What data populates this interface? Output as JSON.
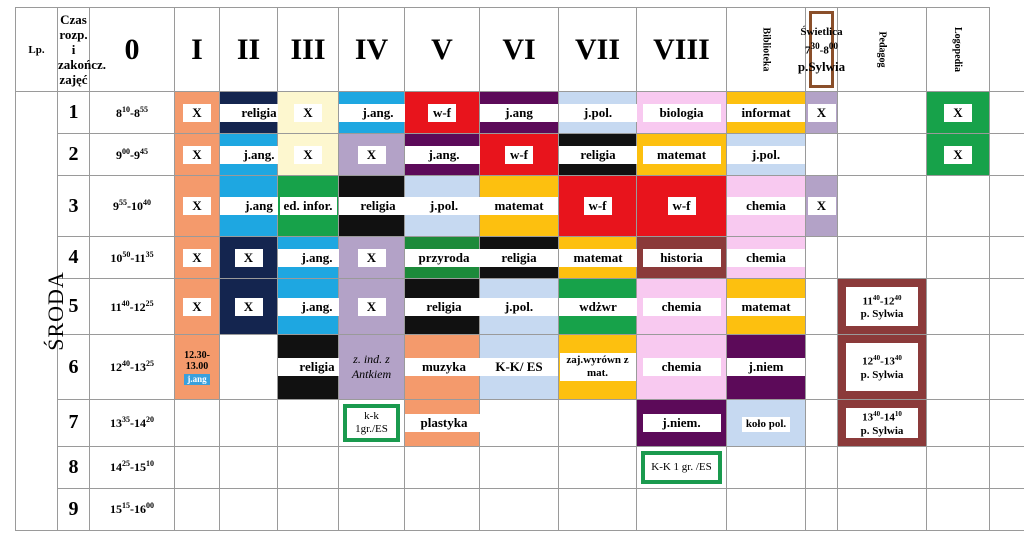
{
  "day": "ŚRODA",
  "headers": {
    "lp": "Lp.",
    "czas": [
      "Czas",
      "rozp. i",
      "zakończ.",
      "zajęć"
    ],
    "classes": [
      "0",
      "I",
      "II",
      "III",
      "IV",
      "V",
      "VI",
      "VII",
      "VIII"
    ],
    "biblioteka": "Biblioteka",
    "swietlica": {
      "title": "Świetlica",
      "time_start": "7",
      "time_start_min": "30",
      "time_end": "8",
      "time_end_min": "00",
      "name": "p.Sylwia"
    },
    "pedagog": "Pedagog",
    "logopedia": "Logopedia"
  },
  "colors": {
    "orange": "#f49a6c",
    "navy": "#14254f",
    "cream": "#fdf7cf",
    "cyan": "#1ea7e1",
    "red": "#e8141c",
    "purple": "#5c0a59",
    "lightblue": "#c6d9f1",
    "pink": "#f8c9f0",
    "yellow": "#fdc00f",
    "lavender": "#b3a2c7",
    "black": "#111111",
    "green": "#17a24a",
    "darkgreen": "#1c8a3a",
    "brown": "#8b3a3a",
    "darkred": "#8b3a3a"
  },
  "rows": [
    {
      "num": "1",
      "t1": "8",
      "t1m": "10",
      "t2": "8",
      "t2m": "55",
      "cells": [
        {
          "text": "X",
          "bg": "#f49a6c"
        },
        {
          "text": "religia",
          "bg": "#14254f"
        },
        {
          "text": "X",
          "bg": "#fdf7cf"
        },
        {
          "text": "j.ang.",
          "bg": "#1ea7e1"
        },
        {
          "text": "w-f",
          "bg": "#e8141c"
        },
        {
          "text": "j.ang",
          "bg": "#5c0a59"
        },
        {
          "text": "j.pol.",
          "bg": "#c6d9f1"
        },
        {
          "text": "biologia",
          "bg": "#f8c9f0"
        },
        {
          "text": "informat",
          "bg": "#fdc00f"
        },
        {
          "text": "X",
          "bg": "#b3a2c7"
        },
        {
          "text": "",
          "bg": "#ffffff"
        },
        {
          "text": "X",
          "bg": "#17a24a"
        },
        {
          "text": "",
          "bg": "#ffffff"
        }
      ]
    },
    {
      "num": "2",
      "t1": "9",
      "t1m": "00",
      "t2": "9",
      "t2m": "45",
      "cells": [
        {
          "text": "X",
          "bg": "#f49a6c"
        },
        {
          "text": "j.ang.",
          "bg": "#1ea7e1"
        },
        {
          "text": "X",
          "bg": "#fdf7cf"
        },
        {
          "text": "X",
          "bg": "#b3a2c7"
        },
        {
          "text": "j.ang.",
          "bg": "#5c0a59"
        },
        {
          "text": "w-f",
          "bg": "#e8141c"
        },
        {
          "text": "religia",
          "bg": "#111111"
        },
        {
          "text": "matemat",
          "bg": "#fdc00f"
        },
        {
          "text": "j.pol.",
          "bg": "#c6d9f1"
        },
        {
          "text": "",
          "bg": "#ffffff"
        },
        {
          "text": "",
          "bg": "#ffffff"
        },
        {
          "text": "X",
          "bg": "#17a24a"
        },
        {
          "text": "",
          "bg": "#ffffff"
        }
      ]
    },
    {
      "num": "3",
      "t1": "9",
      "t1m": "55",
      "t2": "10",
      "t2m": "40",
      "cells": [
        {
          "text": "X",
          "bg": "#f49a6c"
        },
        {
          "text": "j.ang",
          "bg": "#1ea7e1"
        },
        {
          "text": "ed. infor.",
          "bg": "#17a24a"
        },
        {
          "text": "religia",
          "bg": "#111111"
        },
        {
          "text": "j.pol.",
          "bg": "#c6d9f1"
        },
        {
          "text": "matemat",
          "bg": "#fdc00f"
        },
        {
          "text": "w-f",
          "bg": "#e8141c"
        },
        {
          "text": "w-f",
          "bg": "#e8141c"
        },
        {
          "text": "chemia",
          "bg": "#f8c9f0"
        },
        {
          "text": "X",
          "bg": "#b3a2c7"
        },
        {
          "text": "",
          "bg": "#ffffff"
        },
        {
          "text": "",
          "bg": "#ffffff"
        },
        {
          "text": "",
          "bg": "#ffffff"
        }
      ]
    },
    {
      "num": "4",
      "t1": "10",
      "t1m": "50",
      "t2": "11",
      "t2m": "35",
      "cells": [
        {
          "text": "X",
          "bg": "#f49a6c"
        },
        {
          "text": "X",
          "bg": "#14254f"
        },
        {
          "text": "j.ang.",
          "bg": "#1ea7e1"
        },
        {
          "text": "X",
          "bg": "#b3a2c7"
        },
        {
          "text": "przyroda",
          "bg": "#1c8a3a"
        },
        {
          "text": "religia",
          "bg": "#111111"
        },
        {
          "text": "matemat",
          "bg": "#fdc00f"
        },
        {
          "text": "historia",
          "bg": "#8b3a3a"
        },
        {
          "text": "chemia",
          "bg": "#f8c9f0"
        },
        {
          "text": "",
          "bg": "#ffffff"
        },
        {
          "text": "",
          "bg": "#ffffff"
        },
        {
          "text": "",
          "bg": "#ffffff"
        },
        {
          "text": "",
          "bg": "#ffffff"
        }
      ]
    },
    {
      "num": "5",
      "t1": "11",
      "t1m": "40",
      "t2": "12",
      "t2m": "25",
      "cells": [
        {
          "text": "X",
          "bg": "#f49a6c"
        },
        {
          "text": "X",
          "bg": "#14254f"
        },
        {
          "text": "j.ang.",
          "bg": "#1ea7e1"
        },
        {
          "text": "X",
          "bg": "#b3a2c7"
        },
        {
          "text": "religia",
          "bg": "#111111"
        },
        {
          "text": "j.pol.",
          "bg": "#c6d9f1"
        },
        {
          "text": "wdżwr",
          "bg": "#17a24a"
        },
        {
          "text": "chemia",
          "bg": "#f8c9f0"
        },
        {
          "text": "matemat",
          "bg": "#fdc00f"
        },
        {
          "text": "",
          "bg": "#ffffff"
        },
        {
          "sw": true,
          "a": "11",
          "am": "40",
          "b": "12",
          "bm": "40",
          "name": "p. Sylwia"
        },
        {
          "text": "",
          "bg": "#ffffff"
        },
        {
          "text": "",
          "bg": "#ffffff"
        }
      ]
    },
    {
      "num": "6",
      "t1": "12",
      "t1m": "40",
      "t2": "13",
      "t2m": "25",
      "cells": [
        {
          "early": true,
          "line1": "12.30-",
          "line2": "13.00",
          "tag": "j.ang"
        },
        {
          "text": "",
          "bg": "#ffffff"
        },
        {
          "text": "religia",
          "bg": "#111111"
        },
        {
          "text": "z. ind. z Antkiem",
          "bg": "#b3a2c7",
          "ital": true
        },
        {
          "text": "muzyka",
          "bg": "#f49a6c"
        },
        {
          "text": "K-K/ ES",
          "bg": "#c6d9f1"
        },
        {
          "text": "zaj.wyrówn z mat.",
          "bg": "#fdc00f",
          "small": true
        },
        {
          "text": "chemia",
          "bg": "#f8c9f0"
        },
        {
          "text": "j.niem",
          "bg": "#5c0a59"
        },
        {
          "text": "",
          "bg": "#ffffff"
        },
        {
          "sw": true,
          "a": "12",
          "am": "40",
          "b": "13",
          "bm": "40",
          "name": "p. Sylwia"
        },
        {
          "text": "",
          "bg": "#ffffff"
        },
        {
          "text": "",
          "bg": "#ffffff"
        }
      ]
    },
    {
      "num": "7",
      "t1": "13",
      "t1m": "35",
      "t2": "14",
      "t2m": "20",
      "cells": [
        {
          "text": "",
          "bg": "#ffffff"
        },
        {
          "text": "",
          "bg": "#ffffff"
        },
        {
          "text": "",
          "bg": "#ffffff"
        },
        {
          "grn": true,
          "text": "k-k 1gr./ES"
        },
        {
          "text": "plastyka",
          "bg": "#f49a6c"
        },
        {
          "text": "",
          "bg": "#ffffff"
        },
        {
          "text": "",
          "bg": "#ffffff"
        },
        {
          "text": "j.niem.",
          "bg": "#5c0a59"
        },
        {
          "text": "koło pol.",
          "bg": "#c6d9f1",
          "small": true
        },
        {
          "text": "",
          "bg": "#ffffff"
        },
        {
          "sw": true,
          "a": "13",
          "am": "40",
          "b": "14",
          "bm": "10",
          "name": "p. Sylwia"
        },
        {
          "text": "",
          "bg": "#ffffff"
        },
        {
          "text": "",
          "bg": "#ffffff"
        }
      ]
    },
    {
      "num": "8",
      "t1": "14",
      "t1m": "25",
      "t2": "15",
      "t2m": "10",
      "cells": [
        {
          "text": "",
          "bg": "#ffffff"
        },
        {
          "text": "",
          "bg": "#ffffff"
        },
        {
          "text": "",
          "bg": "#ffffff"
        },
        {
          "text": "",
          "bg": "#ffffff"
        },
        {
          "text": "",
          "bg": "#ffffff"
        },
        {
          "text": "",
          "bg": "#ffffff"
        },
        {
          "text": "",
          "bg": "#ffffff"
        },
        {
          "grn": true,
          "text": "K-K 1 gr. /ES"
        },
        {
          "text": "",
          "bg": "#ffffff"
        },
        {
          "text": "",
          "bg": "#ffffff"
        },
        {
          "text": "",
          "bg": "#ffffff"
        },
        {
          "text": "",
          "bg": "#ffffff"
        },
        {
          "text": "",
          "bg": "#ffffff"
        }
      ]
    },
    {
      "num": "9",
      "t1": "15",
      "t1m": "15",
      "t2": "16",
      "t2m": "00",
      "cells": [
        {
          "text": "",
          "bg": "#ffffff"
        },
        {
          "text": "",
          "bg": "#ffffff"
        },
        {
          "text": "",
          "bg": "#ffffff"
        },
        {
          "text": "",
          "bg": "#ffffff"
        },
        {
          "text": "",
          "bg": "#ffffff"
        },
        {
          "text": "",
          "bg": "#ffffff"
        },
        {
          "text": "",
          "bg": "#ffffff"
        },
        {
          "text": "",
          "bg": "#ffffff"
        },
        {
          "text": "",
          "bg": "#ffffff"
        },
        {
          "text": "",
          "bg": "#ffffff"
        },
        {
          "text": "",
          "bg": "#ffffff"
        },
        {
          "text": "",
          "bg": "#ffffff"
        },
        {
          "text": "",
          "bg": "#ffffff"
        }
      ]
    }
  ]
}
